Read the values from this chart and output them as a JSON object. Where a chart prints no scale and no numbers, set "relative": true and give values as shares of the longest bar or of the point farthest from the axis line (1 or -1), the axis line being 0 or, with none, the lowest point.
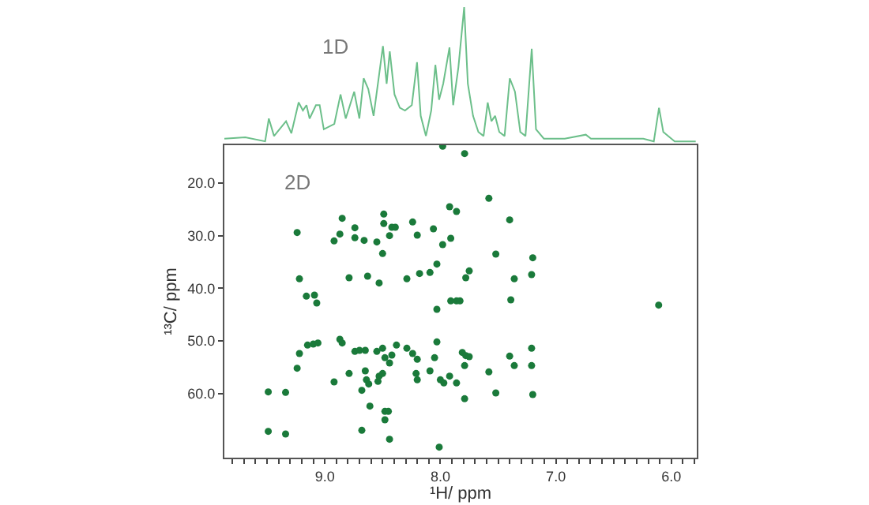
{
  "chart_data": [
    {
      "type": "line",
      "title": "1D",
      "relative": true,
      "tick_labels": false,
      "xlim": [
        9.87,
        5.78
      ],
      "marker": "none",
      "line_style": "solid",
      "x": [
        9.87,
        9.689,
        9.517,
        9.485,
        9.44,
        9.336,
        9.29,
        9.227,
        9.19,
        9.159,
        9.132,
        9.077,
        9.045,
        9.009,
        8.918,
        8.864,
        8.819,
        8.746,
        8.701,
        8.664,
        8.624,
        8.578,
        8.497,
        8.465,
        8.438,
        8.397,
        8.351,
        8.306,
        8.247,
        8.202,
        8.17,
        8.125,
        8.079,
        8.043,
        8.011,
        7.975,
        7.921,
        7.889,
        7.844,
        7.794,
        7.762,
        7.717,
        7.671,
        7.626,
        7.59,
        7.558,
        7.526,
        7.49,
        7.444,
        7.399,
        7.354,
        7.308,
        7.263,
        7.209,
        7.172,
        7.104,
        6.923,
        6.741,
        6.696,
        6.469,
        6.243,
        6.152,
        6.107,
        6.07,
        5.971,
        5.789
      ],
      "series": [
        {
          "color": "#6cbf8a",
          "values": [
            0.02,
            0.03,
            0.0,
            0.17,
            0.04,
            0.15,
            0.06,
            0.29,
            0.23,
            0.27,
            0.17,
            0.27,
            0.27,
            0.09,
            0.13,
            0.35,
            0.17,
            0.37,
            0.17,
            0.47,
            0.39,
            0.19,
            0.71,
            0.43,
            0.67,
            0.35,
            0.25,
            0.23,
            0.27,
            0.59,
            0.19,
            0.04,
            0.23,
            0.57,
            0.31,
            0.43,
            0.7,
            0.27,
            0.55,
            1.0,
            0.43,
            0.19,
            0.07,
            0.04,
            0.29,
            0.15,
            0.19,
            0.07,
            0.04,
            0.47,
            0.37,
            0.07,
            0.04,
            0.69,
            0.09,
            0.02,
            0.02,
            0.05,
            0.02,
            0.02,
            0.02,
            0.0,
            0.25,
            0.07,
            0.0,
            0.0
          ]
        }
      ]
    },
    {
      "type": "scatter",
      "title": "2D",
      "xlabel": "¹H/ ppm",
      "ylabel": "¹³C/ ppm",
      "xlim": [
        9.87,
        5.78
      ],
      "ylim": [
        72.2,
        12.8
      ],
      "marker": "circle",
      "xticks": [
        {
          "value": 9.8,
          "label": null
        },
        {
          "value": 9.7,
          "label": null
        },
        {
          "value": 9.6,
          "label": null
        },
        {
          "value": 9.5,
          "label": null
        },
        {
          "value": 9.4,
          "label": null
        },
        {
          "value": 9.3,
          "label": null
        },
        {
          "value": 9.2,
          "label": null
        },
        {
          "value": 9.1,
          "label": null
        },
        {
          "value": 9.0,
          "label": "9.0"
        },
        {
          "value": 8.9,
          "label": null
        },
        {
          "value": 8.8,
          "label": null
        },
        {
          "value": 8.7,
          "label": null
        },
        {
          "value": 8.6,
          "label": null
        },
        {
          "value": 8.5,
          "label": null
        },
        {
          "value": 8.4,
          "label": null
        },
        {
          "value": 8.3,
          "label": null
        },
        {
          "value": 8.2,
          "label": null
        },
        {
          "value": 8.1,
          "label": null
        },
        {
          "value": 8.0,
          "label": "8.0"
        },
        {
          "value": 7.9,
          "label": null
        },
        {
          "value": 7.8,
          "label": null
        },
        {
          "value": 7.7,
          "label": null
        },
        {
          "value": 7.6,
          "label": null
        },
        {
          "value": 7.5,
          "label": null
        },
        {
          "value": 7.4,
          "label": null
        },
        {
          "value": 7.3,
          "label": null
        },
        {
          "value": 7.2,
          "label": null
        },
        {
          "value": 7.1,
          "label": null
        },
        {
          "value": 7.0,
          "label": "7.0"
        },
        {
          "value": 6.9,
          "label": null
        },
        {
          "value": 6.8,
          "label": null
        },
        {
          "value": 6.7,
          "label": null
        },
        {
          "value": 6.6,
          "label": null
        },
        {
          "value": 6.5,
          "label": null
        },
        {
          "value": 6.4,
          "label": null
        },
        {
          "value": 6.3,
          "label": null
        },
        {
          "value": 6.2,
          "label": null
        },
        {
          "value": 6.1,
          "label": null
        },
        {
          "value": 6.0,
          "label": "6.0"
        },
        {
          "value": 5.9,
          "label": null
        },
        {
          "value": 5.8,
          "label": null
        }
      ],
      "yticks": [
        {
          "value": 20,
          "label": "20.0"
        },
        {
          "value": 30,
          "label": "30.0"
        },
        {
          "value": 40,
          "label": "40.0"
        },
        {
          "value": 50,
          "label": "50.0"
        },
        {
          "value": 60,
          "label": "60.0"
        }
      ],
      "x": [
        7.98,
        7.79,
        9.24,
        8.85,
        8.49,
        8.74,
        8.92,
        8.87,
        8.74,
        8.66,
        8.55,
        8.49,
        8.42,
        8.39,
        8.44,
        8.5,
        8.24,
        8.2,
        8.06,
        7.98,
        7.92,
        7.86,
        7.91,
        9.22,
        8.79,
        8.63,
        8.53,
        8.29,
        8.18,
        8.09,
        8.03,
        7.75,
        7.78,
        9.16,
        9.09,
        9.07,
        8.03,
        7.91,
        7.86,
        7.83,
        9.15,
        9.1,
        9.06,
        9.22,
        9.24,
        8.87,
        8.85,
        8.74,
        8.7,
        8.65,
        8.79,
        8.92,
        8.65,
        8.64,
        8.62,
        8.68,
        8.61,
        8.48,
        8.45,
        8.48,
        8.68,
        8.44,
        8.01,
        9.49,
        9.34,
        9.49,
        9.34,
        8.55,
        8.5,
        8.48,
        8.42,
        8.38,
        8.53,
        8.5,
        8.44,
        8.54,
        8.29,
        8.24,
        8.2,
        8.21,
        8.2,
        8.09,
        8.03,
        8.05,
        8.0,
        7.97,
        7.92,
        7.86,
        7.81,
        7.78,
        7.75,
        7.79,
        7.79,
        7.58,
        7.4,
        7.52,
        7.2,
        7.21,
        7.36,
        7.39,
        6.11,
        7.4,
        7.21,
        7.21,
        7.36,
        7.58,
        7.52,
        7.2
      ],
      "series": [
        {
          "color": "#1a7a3a",
          "values": [
            13.0,
            14.4,
            29.4,
            26.7,
            25.9,
            28.5,
            31.0,
            29.7,
            30.4,
            30.9,
            31.2,
            27.7,
            28.4,
            28.4,
            30.0,
            33.4,
            27.4,
            29.9,
            28.7,
            31.7,
            24.5,
            25.4,
            30.5,
            38.2,
            38.0,
            37.7,
            39.0,
            38.2,
            37.2,
            37.0,
            35.4,
            36.7,
            38.0,
            41.5,
            41.3,
            42.8,
            44.0,
            42.4,
            42.4,
            42.4,
            50.8,
            50.6,
            50.4,
            52.4,
            55.2,
            49.7,
            50.4,
            52.0,
            51.8,
            51.8,
            56.2,
            57.8,
            55.7,
            57.4,
            58.2,
            59.4,
            62.4,
            63.4,
            63.4,
            65.0,
            67.0,
            68.7,
            70.2,
            59.7,
            59.8,
            67.2,
            67.7,
            52.0,
            51.4,
            53.2,
            52.7,
            50.8,
            56.7,
            56.2,
            54.2,
            57.7,
            51.4,
            52.4,
            53.5,
            56.2,
            57.4,
            55.7,
            50.2,
            53.2,
            57.4,
            58.0,
            56.7,
            58.0,
            52.2,
            52.8,
            53.0,
            54.7,
            61.0,
            22.9,
            27.0,
            33.5,
            34.2,
            37.4,
            38.2,
            42.2,
            43.2,
            52.9,
            51.4,
            54.7,
            54.7,
            55.9,
            59.9,
            60.2
          ]
        }
      ]
    }
  ]
}
